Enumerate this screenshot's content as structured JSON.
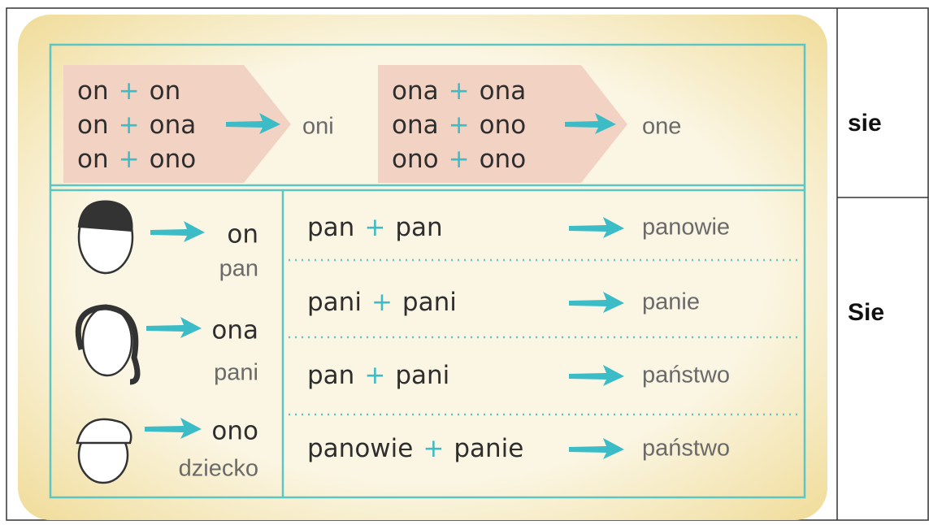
{
  "card": {
    "plus": "+",
    "top": [
      {
        "lines": [
          [
            "on",
            "on"
          ],
          [
            "on",
            "ona"
          ],
          [
            "on",
            "ono"
          ]
        ],
        "result": "oni"
      },
      {
        "lines": [
          [
            "ona",
            "ona"
          ],
          [
            "ona",
            "ono"
          ],
          [
            "ono",
            "ono"
          ]
        ],
        "result": "one"
      }
    ],
    "persons": [
      {
        "pronoun": "on",
        "noun": "pan"
      },
      {
        "pronoun": "ona",
        "noun": "pani"
      },
      {
        "pronoun": "ono",
        "noun": "dziecko"
      }
    ],
    "rules": [
      {
        "left": "pan",
        "right": "pan",
        "result": "panowie"
      },
      {
        "left": "pani",
        "right": "pani",
        "result": "panie"
      },
      {
        "left": "pan",
        "right": "pani",
        "result": "państwo"
      },
      {
        "left": "panowie",
        "right": "panie",
        "result": "państwo"
      }
    ]
  },
  "side": {
    "rows": [
      "sie",
      "Sie"
    ]
  }
}
